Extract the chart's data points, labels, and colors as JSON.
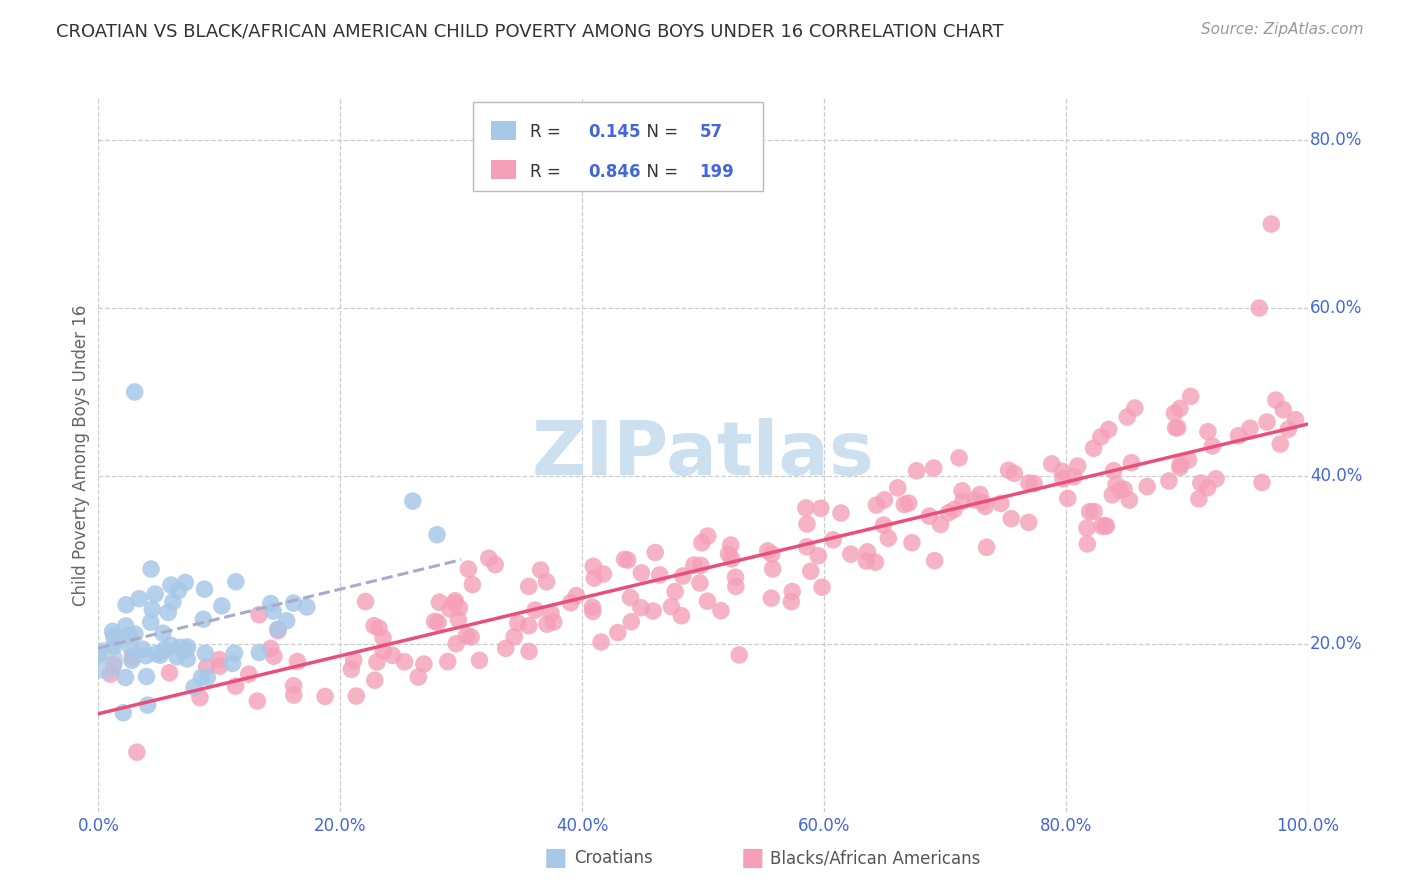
{
  "title": "CROATIAN VS BLACK/AFRICAN AMERICAN CHILD POVERTY AMONG BOYS UNDER 16 CORRELATION CHART",
  "source": "Source: ZipAtlas.com",
  "ylabel": "Child Poverty Among Boys Under 16",
  "watermark": "ZIPatlas",
  "legend_r1_val": "0.145",
  "legend_n1_val": "57",
  "legend_r2_val": "0.846",
  "legend_n2_val": "199",
  "color_croatian": "#a8c8e8",
  "color_black": "#f5a0b8",
  "color_line_croatian": "#aaaacc",
  "color_line_black": "#e8507a",
  "color_text_blue": "#4466dd",
  "color_grid": "#cccccc",
  "color_title": "#333333",
  "color_source": "#999999",
  "color_ylabel": "#666666",
  "color_legend_text": "#333333",
  "color_bottom_legend": "#555555",
  "color_watermark": "#cce0f0",
  "xlim": [
    0.0,
    1.0
  ],
  "ylim": [
    0.0,
    0.85
  ],
  "ytick_right_labels": [
    "20.0%",
    "40.0%",
    "60.0%",
    "80.0%"
  ],
  "ytick_right_vals": [
    0.2,
    0.4,
    0.6,
    0.8
  ],
  "xtick_vals": [
    0.0,
    0.2,
    0.4,
    0.6,
    0.8,
    1.0
  ],
  "xtick_labels": [
    "0.0%",
    "20.0%",
    "40.0%",
    "60.0%",
    "80.0%",
    "100.0%"
  ]
}
